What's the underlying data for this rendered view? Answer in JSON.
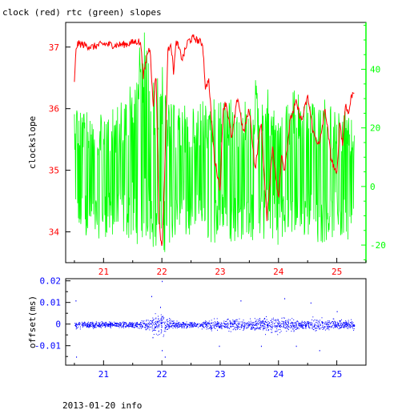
{
  "title": "clock (red) rtc (green) slopes",
  "footer": "2013-01-20 info",
  "colors": {
    "clock": "#ff0000",
    "rtc": "#00ff00",
    "offset": "#0000ff",
    "axis": "#000000"
  },
  "chart_data": [
    {
      "type": "line",
      "title": "clock (red) rtc (green) slopes",
      "xlabel": "",
      "ylabel": "clockslope",
      "xlim": [
        20.35,
        25.5
      ],
      "ylim": [
        33.5,
        37.4
      ],
      "xticks": [
        21,
        22,
        23,
        24,
        25
      ],
      "yticks": [
        34,
        35,
        36,
        37
      ],
      "y2lim": [
        -26,
        56
      ],
      "y2ticks": [
        -20,
        0,
        20,
        40
      ],
      "grid": false,
      "series": [
        {
          "name": "clock",
          "axis": "left",
          "x": [
            20.5,
            20.53,
            20.56,
            20.6,
            20.8,
            21.0,
            21.2,
            21.4,
            21.6,
            21.65,
            21.68,
            21.75,
            21.8,
            21.85,
            21.9,
            21.95,
            22.0,
            22.05,
            22.1,
            22.15,
            22.2,
            22.25,
            22.35,
            22.45,
            22.55,
            22.7,
            22.75,
            22.8,
            22.9,
            23.0,
            23.05,
            23.1,
            23.2,
            23.3,
            23.4,
            23.5,
            23.6,
            23.65,
            23.7,
            23.8,
            23.9,
            24.0,
            24.05,
            24.1,
            24.2,
            24.3,
            24.4,
            24.5,
            24.6,
            24.7,
            24.8,
            24.9,
            25.0,
            25.05,
            25.1,
            25.15,
            25.2,
            25.25,
            25.3
          ],
          "values": [
            36.4,
            37.0,
            37.05,
            37.05,
            37.0,
            37.05,
            37.03,
            37.05,
            37.1,
            37.0,
            36.5,
            36.9,
            37.0,
            36.0,
            36.6,
            34.2,
            33.7,
            35.0,
            36.9,
            37.1,
            36.6,
            37.1,
            36.8,
            37.1,
            37.15,
            37.05,
            36.3,
            36.5,
            35.2,
            34.7,
            36.0,
            36.1,
            35.5,
            36.2,
            35.6,
            36.0,
            35.0,
            35.4,
            35.8,
            34.2,
            35.4,
            34.5,
            35.3,
            35.0,
            35.8,
            36.1,
            35.8,
            36.2,
            35.6,
            35.4,
            36.0,
            35.2,
            34.9,
            35.8,
            35.4,
            36.1,
            35.9,
            36.2,
            36.3
          ]
        },
        {
          "name": "rtc",
          "axis": "right",
          "x": [
            20.5,
            20.6,
            20.7,
            20.8,
            20.9,
            21.0,
            21.1,
            21.2,
            21.3,
            21.4,
            21.5,
            21.6,
            21.7,
            21.8,
            21.9,
            22.0,
            22.1,
            22.2,
            22.3,
            22.4,
            22.5,
            22.6,
            22.7,
            22.8,
            22.9,
            23.0,
            23.1,
            23.2,
            23.3,
            23.4,
            23.5,
            23.6,
            23.7,
            23.8,
            23.9,
            24.0,
            24.1,
            24.2,
            24.3,
            24.4,
            24.5,
            24.6,
            24.7,
            24.8,
            24.9,
            25.0,
            25.1,
            25.2,
            25.3
          ],
          "max": [
            30,
            28,
            25,
            28,
            26,
            27,
            28,
            26,
            30,
            32,
            40,
            50,
            54,
            40,
            35,
            45,
            30,
            28,
            27,
            28,
            26,
            28,
            30,
            29,
            30,
            32,
            28,
            30,
            28,
            29,
            30,
            38,
            28,
            35,
            30,
            27,
            28,
            30,
            36,
            28,
            30,
            28,
            29,
            30,
            28,
            26,
            28,
            24,
            22
          ],
          "min": [
            -20,
            -18,
            -17,
            -19,
            -18,
            -17,
            -18,
            -19,
            -17,
            -18,
            -19,
            -20,
            -18,
            -21,
            -22,
            -25,
            -20,
            -19,
            -18,
            -19,
            -18,
            -17,
            -18,
            -19,
            -20,
            -18,
            -19,
            -20,
            -18,
            -19,
            -18,
            -20,
            -19,
            -18,
            -19,
            -20,
            -18,
            -17,
            -19,
            -18,
            -17,
            -18,
            -20,
            -19,
            -18,
            -17,
            -19,
            -18,
            -22
          ]
        }
      ]
    },
    {
      "type": "scatter",
      "xlabel": "",
      "ylabel": "offset(ms)",
      "xlim": [
        20.35,
        25.5
      ],
      "ylim": [
        -0.019,
        0.021
      ],
      "xticks": [
        21,
        22,
        23,
        24,
        25
      ],
      "yticks": [
        -0.01,
        0,
        0.01,
        0.02
      ],
      "ytick_labels": [
        "-0.01",
        "0",
        "0.01",
        "0.02"
      ],
      "grid": false,
      "series": [
        {
          "name": "offset",
          "x": [
            20.5,
            20.6,
            20.8,
            21.0,
            21.2,
            21.4,
            21.6,
            21.8,
            21.9,
            22.0,
            22.1,
            22.2,
            22.4,
            22.6,
            22.8,
            23.0,
            23.2,
            23.4,
            23.6,
            23.8,
            24.0,
            24.2,
            24.4,
            24.6,
            24.8,
            25.0,
            25.2,
            25.3
          ],
          "spread": [
            0.004,
            0.002,
            0.002,
            0.002,
            0.002,
            0.002,
            0.002,
            0.004,
            0.006,
            0.008,
            0.004,
            0.003,
            0.002,
            0.002,
            0.003,
            0.004,
            0.004,
            0.003,
            0.004,
            0.005,
            0.005,
            0.004,
            0.003,
            0.004,
            0.004,
            0.003,
            0.003,
            0.003
          ],
          "extremes_x": [
            20.52,
            20.53,
            21.82,
            21.84,
            21.97,
            22.0,
            22.05,
            22.0,
            22.98,
            23.35,
            23.7,
            24.1,
            24.3,
            24.55,
            24.7,
            25.0
          ],
          "extremes_y": [
            0.011,
            -0.015,
            0.013,
            -0.006,
            0.008,
            0.02,
            -0.015,
            -0.012,
            -0.01,
            0.011,
            -0.01,
            0.012,
            -0.01,
            0.01,
            -0.012,
            0.006
          ]
        }
      ]
    }
  ]
}
